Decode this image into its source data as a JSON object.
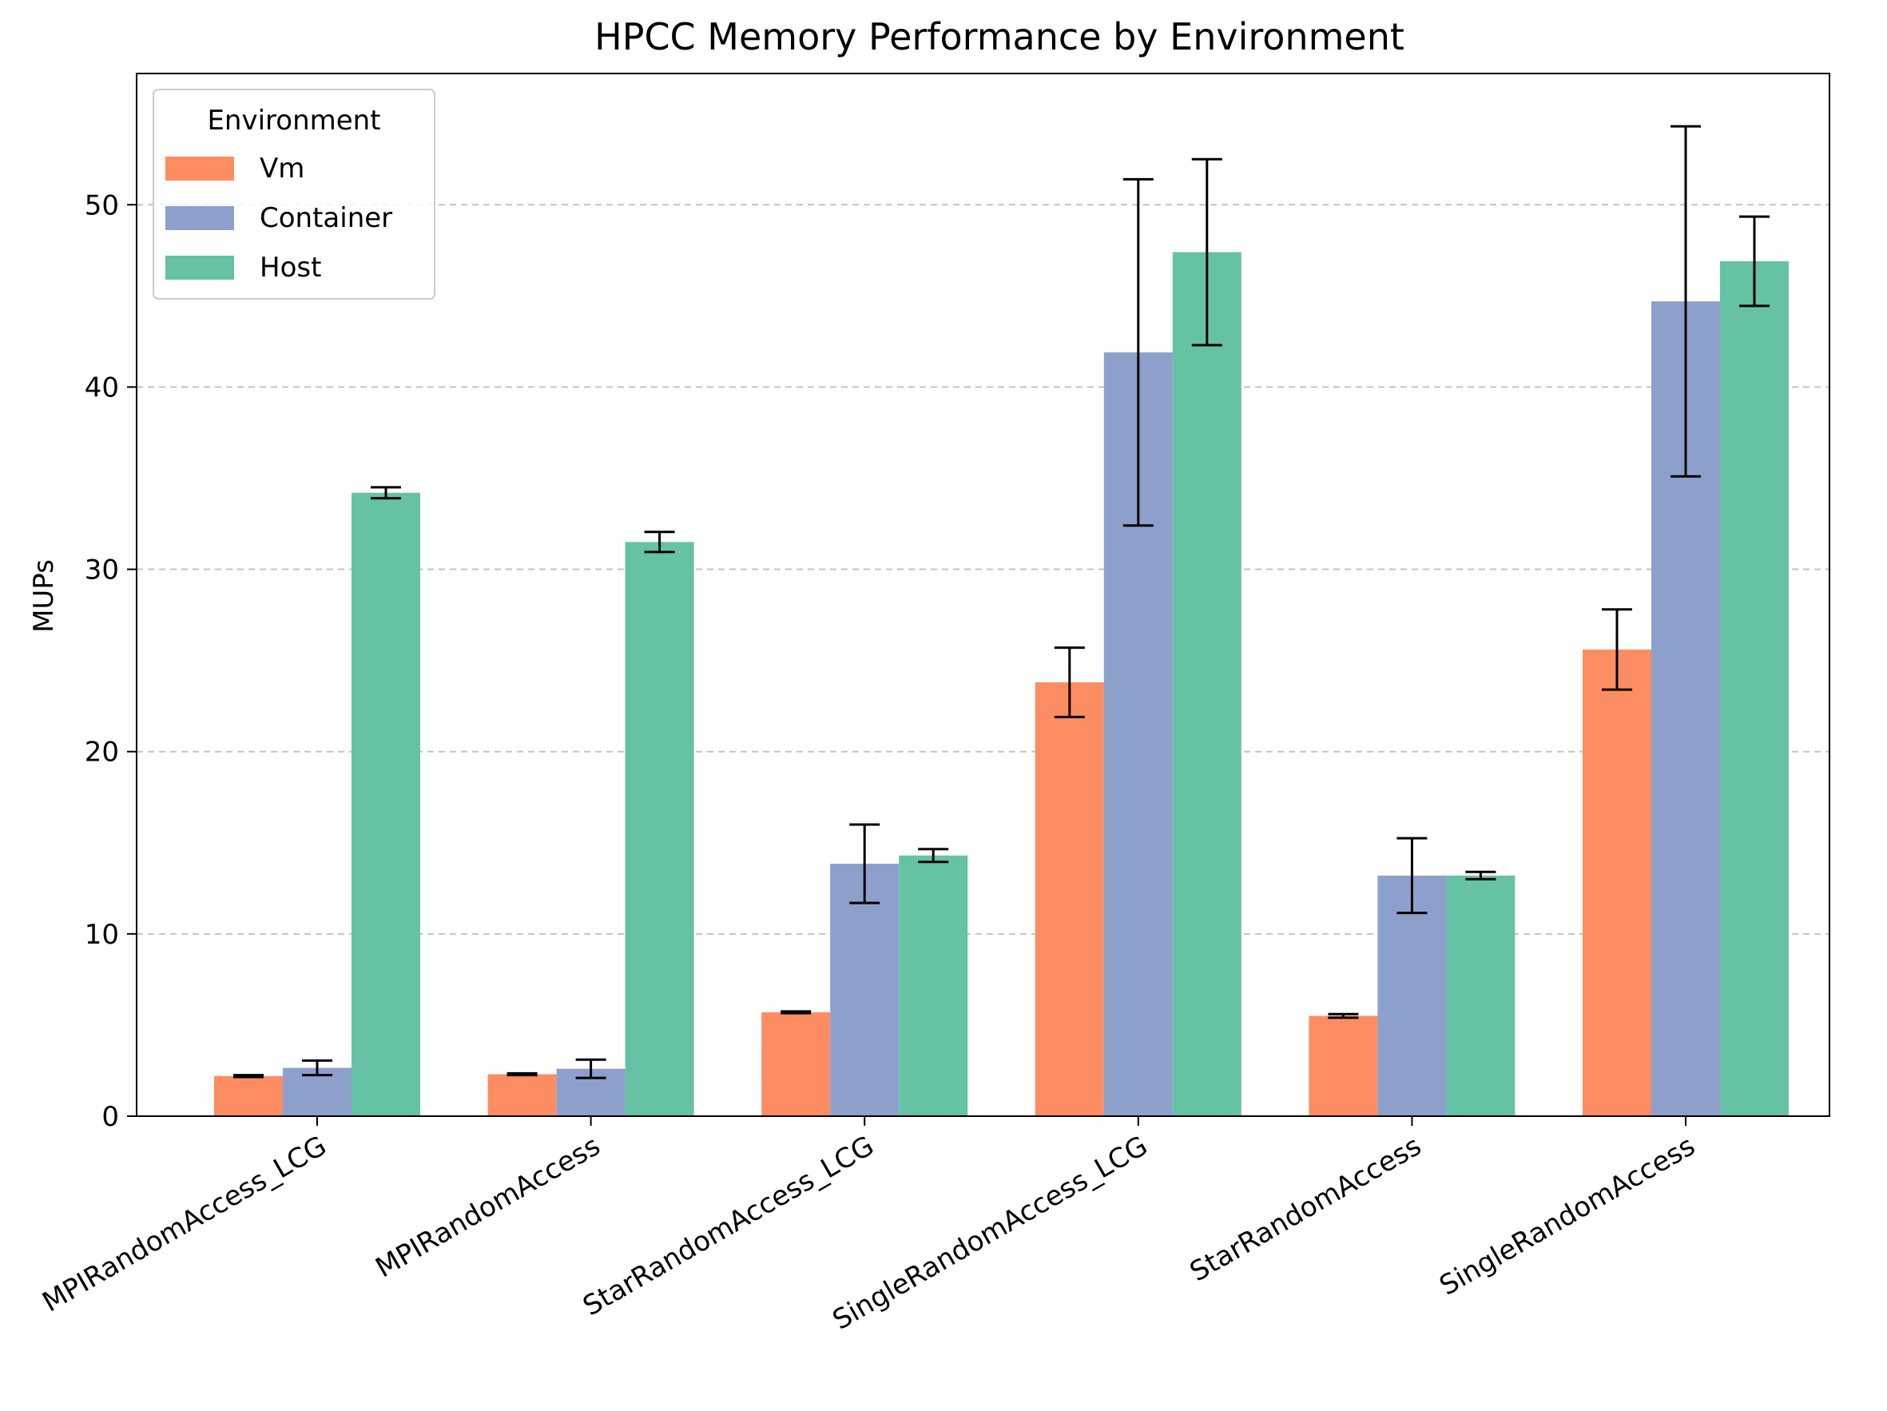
{
  "chart_data": {
    "type": "bar",
    "title": "HPCC Memory Performance by Environment",
    "xlabel": "",
    "ylabel": "MUPs",
    "ylim": [
      0,
      57.2
    ],
    "yticks": [
      0,
      10,
      20,
      30,
      40,
      50
    ],
    "grid": "y-dashed",
    "legend": {
      "title": "Environment",
      "placement": "top-left"
    },
    "categories": [
      "MPIRandomAccess_LCG",
      "MPIRandomAccess",
      "StarRandomAccess_LCG",
      "SingleRandomAccess_LCG",
      "StarRandomAccess",
      "SingleRandomAccess"
    ],
    "series": [
      {
        "name": "Vm",
        "color": "#fc8d62",
        "values": [
          2.2,
          2.3,
          5.7,
          23.8,
          5.5,
          25.6
        ],
        "errors": [
          0.05,
          0.05,
          0.05,
          1.9,
          0.1,
          2.2
        ]
      },
      {
        "name": "Container",
        "color": "#8da0cb",
        "values": [
          2.65,
          2.6,
          13.85,
          41.9,
          13.2,
          44.7
        ],
        "errors": [
          0.4,
          0.5,
          2.15,
          9.5,
          2.05,
          9.6
        ]
      },
      {
        "name": "Host",
        "color": "#66c2a5",
        "values": [
          34.2,
          31.5,
          14.3,
          47.4,
          13.2,
          46.9
        ],
        "errors": [
          0.3,
          0.55,
          0.35,
          5.1,
          0.2,
          2.45
        ]
      }
    ]
  }
}
